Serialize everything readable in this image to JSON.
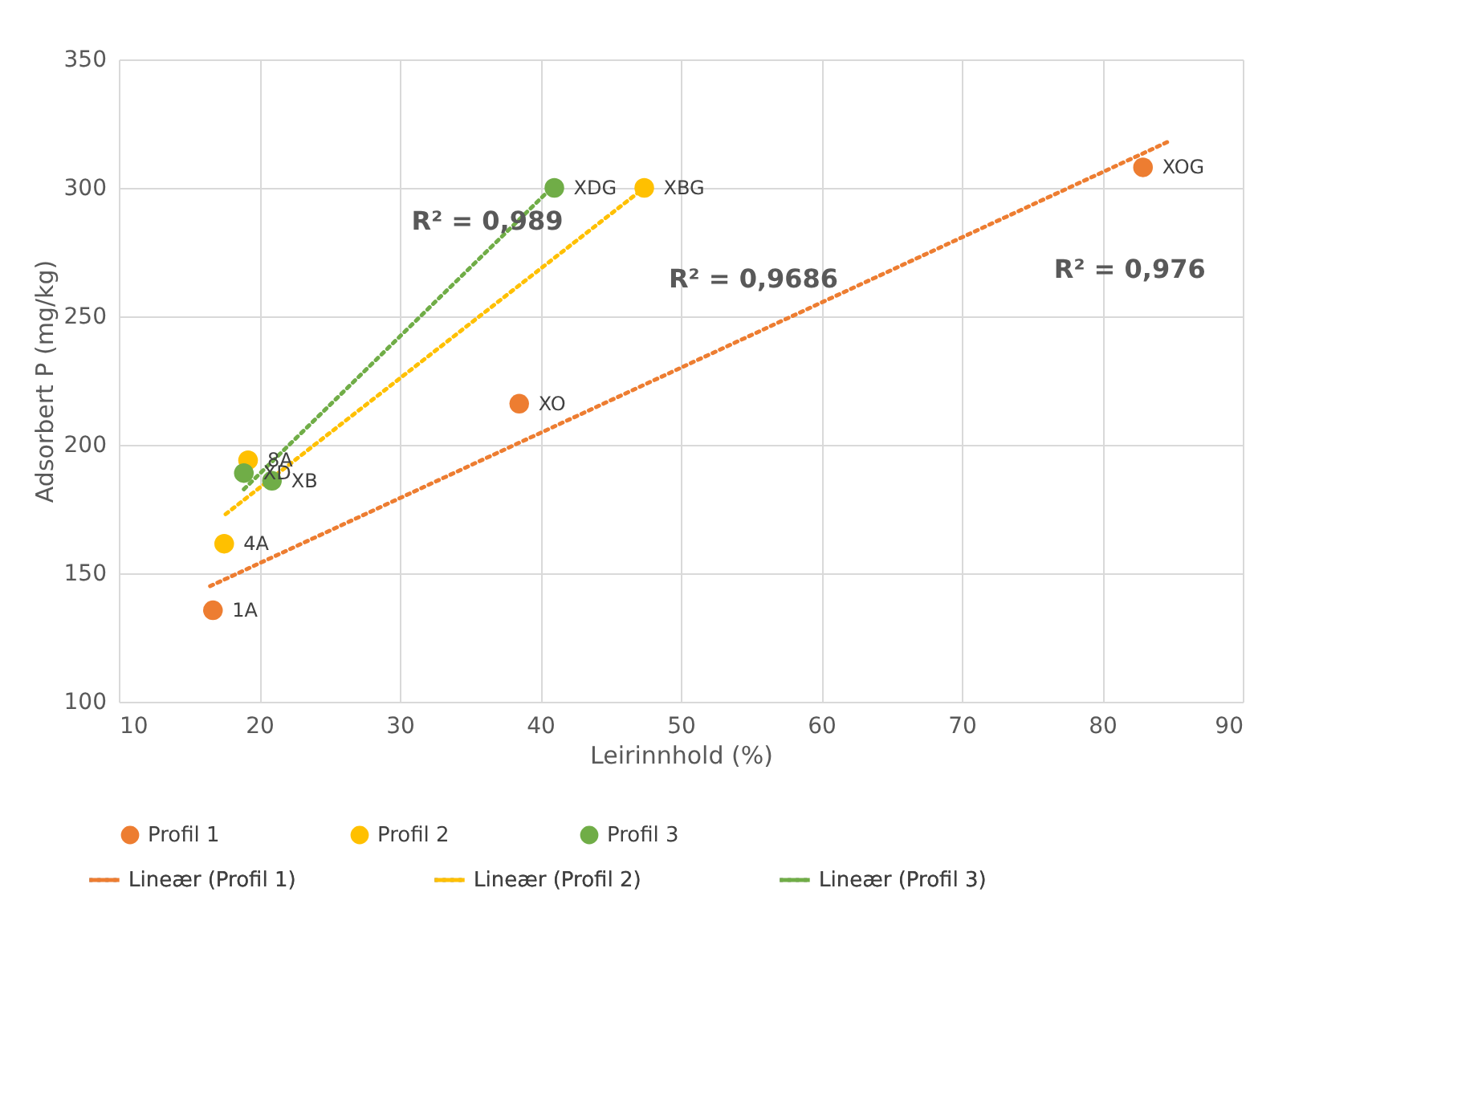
{
  "chart_data": {
    "type": "scatter",
    "xlabel": "Leirinnhold (%)",
    "ylabel": "Adsorbert P (mg/kg)",
    "xlim": [
      10,
      90
    ],
    "xticks": [
      10,
      20,
      30,
      40,
      50,
      60,
      70,
      80,
      90
    ],
    "ylim": [
      100,
      350
    ],
    "yticks": [
      100,
      150,
      200,
      250,
      300,
      350
    ],
    "grid": true,
    "legend": "bottom",
    "marker": "circle",
    "series": [
      {
        "name": "Profil 1",
        "color": "#ed7d31",
        "x": [
          16.7,
          38.5,
          82.9
        ],
        "values": [
          135.6,
          216,
          308
        ]
      },
      {
        "name": "Profil 2",
        "color": "#ffc000",
        "x": [
          17.5,
          19.2,
          47.4
        ],
        "values": [
          161.5,
          194,
          300
        ]
      },
      {
        "name": "Profil 3",
        "color": "#70ad47",
        "x": [
          18.9,
          20.9,
          41.0
        ],
        "values": [
          189,
          186,
          300
        ]
      },
      {
        "name": "Lineær (Profil 1)",
        "type": "line",
        "marker": "none",
        "line_style": "dotted",
        "color": "#ed7d31",
        "x": [
          16.5,
          84.7
        ],
        "values": [
          145,
          318
        ]
      },
      {
        "name": "Lineær (Profil 2)",
        "type": "line",
        "marker": "none",
        "line_style": "dotted",
        "color": "#ffc000",
        "x": [
          17.6,
          47.4
        ],
        "values": [
          173,
          300
        ]
      },
      {
        "name": "Lineær (Profil 3)",
        "type": "line",
        "marker": "none",
        "line_style": "dotted",
        "color": "#70ad47",
        "x": [
          18.9,
          40.8
        ],
        "values": [
          182.7,
          300
        ]
      }
    ],
    "annotations": [
      {
        "text": "1A",
        "x": 16.7,
        "y": 135.6
      },
      {
        "text": "XO",
        "x": 38.5,
        "y": 216
      },
      {
        "text": "XOG",
        "x": 82.9,
        "y": 308
      },
      {
        "text": "4A",
        "x": 17.5,
        "y": 161.5
      },
      {
        "text": "8A",
        "x": 19.2,
        "y": 194
      },
      {
        "text": "XBG",
        "x": 47.4,
        "y": 300
      },
      {
        "text": "XD",
        "x": 18.9,
        "y": 189
      },
      {
        "text": "XB",
        "x": 20.9,
        "y": 186
      },
      {
        "text": "XDG",
        "x": 41.0,
        "y": 300
      },
      "R² = 0,976",
      "R² = 0,9686",
      "R² = 0,989"
    ]
  }
}
